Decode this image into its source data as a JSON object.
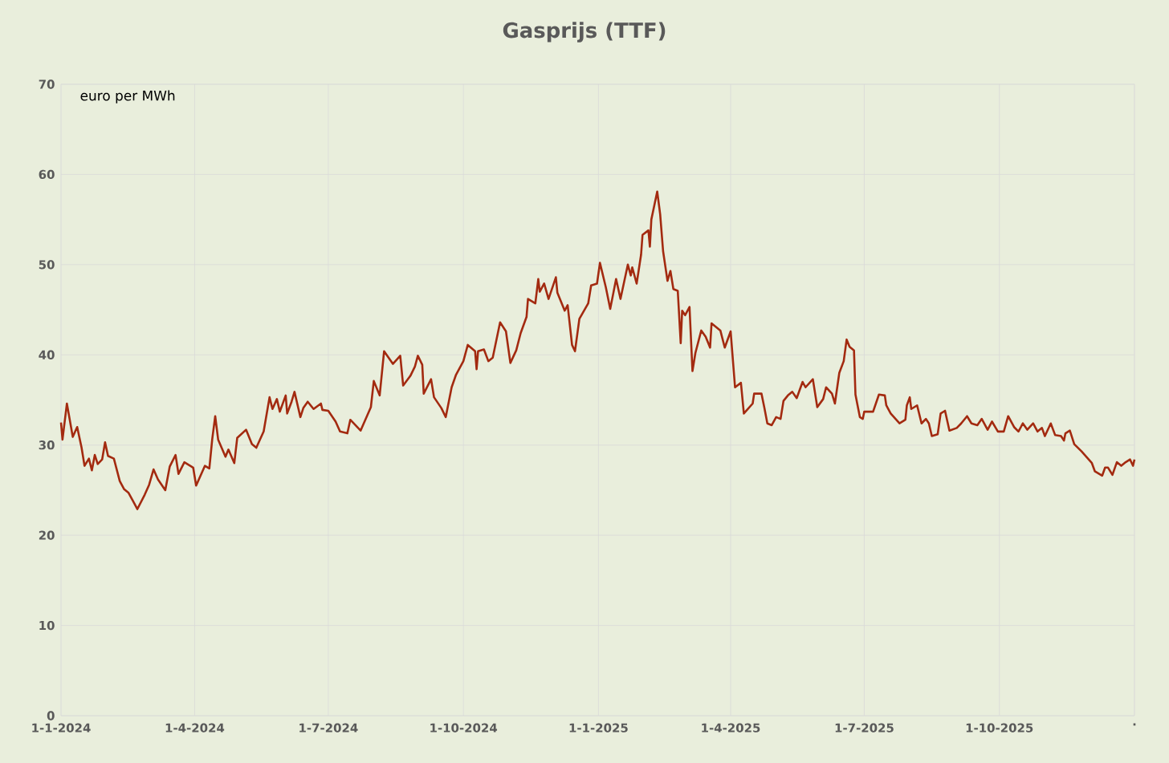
{
  "chart_data": {
    "type": "line",
    "title": "Gasprijs (TTF)",
    "ylabel": "euro per MWh",
    "x": [
      "2024-01-01",
      "2024-01-02",
      "2024-01-05",
      "2024-01-09",
      "2024-01-12",
      "2024-01-15",
      "2024-01-17",
      "2024-01-20",
      "2024-01-22",
      "2024-01-24",
      "2024-01-26",
      "2024-01-29",
      "2024-01-31",
      "2024-02-02",
      "2024-02-06",
      "2024-02-10",
      "2024-02-13",
      "2024-02-16",
      "2024-02-19",
      "2024-02-22",
      "2024-02-27",
      "2024-03-01",
      "2024-03-04",
      "2024-03-07",
      "2024-03-12",
      "2024-03-15",
      "2024-03-19",
      "2024-03-21",
      "2024-03-25",
      "2024-03-31",
      "2024-04-02",
      "2024-04-08",
      "2024-04-11",
      "2024-04-13",
      "2024-04-15",
      "2024-04-17",
      "2024-04-22",
      "2024-04-24",
      "2024-04-28",
      "2024-04-30",
      "2024-05-06",
      "2024-05-10",
      "2024-05-13",
      "2024-05-18",
      "2024-05-22",
      "2024-05-24",
      "2024-05-27",
      "2024-05-29",
      "2024-06-02",
      "2024-06-03",
      "2024-06-06",
      "2024-06-08",
      "2024-06-12",
      "2024-06-14",
      "2024-06-17",
      "2024-06-21",
      "2024-06-26",
      "2024-06-27",
      "2024-07-01",
      "2024-07-06",
      "2024-07-09",
      "2024-07-14",
      "2024-07-16",
      "2024-07-23",
      "2024-07-30",
      "2024-08-01",
      "2024-08-05",
      "2024-08-08",
      "2024-08-14",
      "2024-08-19",
      "2024-08-21",
      "2024-08-26",
      "2024-08-29",
      "2024-08-31",
      "2024-09-03",
      "2024-09-04",
      "2024-09-09",
      "2024-09-11",
      "2024-09-16",
      "2024-09-19",
      "2024-09-23",
      "2024-09-26",
      "2024-10-01",
      "2024-10-04",
      "2024-10-09",
      "2024-10-10",
      "2024-10-11",
      "2024-10-15",
      "2024-10-18",
      "2024-10-21",
      "2024-10-26",
      "2024-10-30",
      "2024-11-02",
      "2024-11-06",
      "2024-11-09",
      "2024-11-13",
      "2024-11-14",
      "2024-11-19",
      "2024-11-21",
      "2024-11-22",
      "2024-11-25",
      "2024-11-28",
      "2024-12-03",
      "2024-12-04",
      "2024-12-09",
      "2024-12-11",
      "2024-12-14",
      "2024-12-16",
      "2024-12-19",
      "2024-12-25",
      "2024-12-27",
      "2024-12-31",
      "2025-01-02",
      "2025-01-06",
      "2025-01-09",
      "2025-01-13",
      "2025-01-16",
      "2025-01-21",
      "2025-01-23",
      "2025-01-24",
      "2025-01-27",
      "2025-01-30",
      "2025-01-31",
      "2025-02-04",
      "2025-02-05",
      "2025-02-06",
      "2025-02-10",
      "2025-02-12",
      "2025-02-14",
      "2025-02-17",
      "2025-02-19",
      "2025-02-21",
      "2025-02-24",
      "2025-02-26",
      "2025-02-27",
      "2025-03-01",
      "2025-03-04",
      "2025-03-06",
      "2025-03-08",
      "2025-03-12",
      "2025-03-15",
      "2025-03-18",
      "2025-03-19",
      "2025-03-25",
      "2025-03-28",
      "2025-04-01",
      "2025-04-04",
      "2025-04-08",
      "2025-04-10",
      "2025-04-16",
      "2025-04-17",
      "2025-04-22",
      "2025-04-24",
      "2025-04-26",
      "2025-04-29",
      "2025-05-02",
      "2025-05-05",
      "2025-05-07",
      "2025-05-10",
      "2025-05-13",
      "2025-05-16",
      "2025-05-20",
      "2025-05-22",
      "2025-05-27",
      "2025-05-30",
      "2025-06-03",
      "2025-06-05",
      "2025-06-09",
      "2025-06-11",
      "2025-06-14",
      "2025-06-17",
      "2025-06-19",
      "2025-06-21",
      "2025-06-24",
      "2025-06-25",
      "2025-06-28",
      "2025-06-30",
      "2025-07-01",
      "2025-07-07",
      "2025-07-11",
      "2025-07-15",
      "2025-07-16",
      "2025-07-19",
      "2025-07-25",
      "2025-07-29",
      "2025-07-30",
      "2025-08-01",
      "2025-08-02",
      "2025-08-06",
      "2025-08-09",
      "2025-08-12",
      "2025-08-14",
      "2025-08-16",
      "2025-08-20",
      "2025-08-22",
      "2025-08-25",
      "2025-08-28",
      "2025-09-02",
      "2025-09-05",
      "2025-09-09",
      "2025-09-12",
      "2025-09-16",
      "2025-09-19",
      "2025-09-23",
      "2025-09-26",
      "2025-09-30",
      "2025-10-04",
      "2025-10-07",
      "2025-10-11",
      "2025-10-14",
      "2025-10-17",
      "2025-10-20",
      "2025-10-24",
      "2025-10-27",
      "2025-10-30",
      "2025-11-01",
      "2025-11-05",
      "2025-11-08",
      "2025-11-12",
      "2025-11-14",
      "2025-11-15",
      "2025-11-18",
      "2025-11-21",
      "2025-11-26",
      "2025-12-03",
      "2025-12-05",
      "2025-12-10",
      "2025-12-12",
      "2025-12-14",
      "2025-12-17",
      "2025-12-20",
      "2025-12-23",
      "2025-12-26",
      "2025-12-29",
      "2025-12-31",
      "2026-01-01"
    ],
    "series": [
      {
        "color": "#a32a10",
        "values": [
          32.5,
          30.6,
          34.6,
          30.9,
          32.0,
          29.7,
          27.7,
          28.5,
          27.2,
          28.9,
          27.9,
          28.4,
          30.3,
          28.8,
          28.5,
          26.0,
          25.1,
          24.7,
          23.8,
          22.9,
          24.5,
          25.6,
          27.3,
          26.2,
          25.0,
          27.6,
          28.9,
          26.8,
          28.1,
          27.5,
          25.5,
          27.7,
          27.4,
          30.7,
          33.2,
          30.6,
          28.7,
          29.5,
          28.0,
          30.8,
          31.7,
          30.1,
          29.7,
          31.5,
          35.3,
          34.0,
          35.1,
          33.7,
          35.5,
          33.5,
          34.8,
          35.9,
          33.1,
          34.1,
          34.8,
          34.0,
          34.6,
          33.9,
          33.8,
          32.6,
          31.5,
          31.3,
          32.8,
          31.6,
          34.2,
          37.1,
          35.5,
          40.4,
          39.0,
          39.9,
          36.6,
          37.7,
          38.7,
          39.9,
          38.9,
          35.7,
          37.3,
          35.3,
          34.1,
          33.1,
          36.4,
          37.8,
          39.3,
          41.1,
          40.4,
          38.4,
          40.4,
          40.6,
          39.3,
          39.7,
          43.6,
          42.6,
          39.1,
          40.5,
          42.4,
          44.2,
          46.2,
          45.7,
          48.4,
          47.0,
          47.9,
          46.2,
          48.6,
          46.9,
          44.9,
          45.5,
          41.1,
          40.4,
          44.0,
          45.7,
          47.7,
          47.9,
          50.2,
          47.5,
          45.1,
          48.4,
          46.2,
          50.0,
          48.8,
          49.7,
          47.9,
          51.1,
          53.3,
          53.8,
          52.0,
          55.0,
          58.1,
          55.6,
          51.5,
          48.2,
          49.3,
          47.3,
          47.1,
          41.3,
          44.9,
          44.4,
          45.3,
          38.2,
          40.2,
          42.7,
          42.0,
          40.8,
          43.5,
          42.7,
          40.8,
          42.6,
          36.4,
          36.9,
          33.5,
          34.6,
          35.7,
          35.7,
          34.1,
          32.4,
          32.2,
          33.1,
          32.9,
          34.9,
          35.5,
          35.9,
          35.2,
          37.0,
          36.4,
          37.3,
          34.2,
          35.1,
          36.4,
          35.7,
          34.6,
          38.0,
          39.3,
          41.7,
          40.9,
          40.5,
          35.6,
          33.1,
          32.9,
          33.7,
          33.7,
          35.6,
          35.5,
          34.4,
          33.5,
          32.4,
          32.8,
          34.4,
          35.3,
          34.0,
          34.4,
          32.4,
          32.9,
          32.4,
          31.0,
          31.2,
          33.5,
          33.8,
          31.6,
          31.9,
          32.4,
          33.2,
          32.4,
          32.2,
          32.9,
          31.7,
          32.6,
          31.5,
          31.5,
          33.2,
          32.0,
          31.5,
          32.4,
          31.7,
          32.4,
          31.5,
          31.9,
          31.0,
          32.4,
          31.1,
          31.0,
          30.5,
          31.3,
          31.6,
          30.1,
          29.3,
          28.0,
          27.1,
          26.6,
          27.5,
          27.5,
          26.7,
          28.1,
          27.7,
          28.1,
          28.4,
          27.7,
          28.4
        ]
      }
    ],
    "xlim": [
      "2024-01-01",
      "2026-01-01"
    ],
    "xticks": [
      {
        "value": "2024-01-01",
        "label": "1-1-2024"
      },
      {
        "value": "2024-04-01",
        "label": "1-4-2024"
      },
      {
        "value": "2024-07-01",
        "label": "1-7-2024"
      },
      {
        "value": "2024-10-01",
        "label": "1-10-2024"
      },
      {
        "value": "2025-01-01",
        "label": "1-1-2025"
      },
      {
        "value": "2025-04-01",
        "label": "1-4-2025"
      },
      {
        "value": "2025-07-01",
        "label": "1-7-2025"
      },
      {
        "value": "2025-10-01",
        "label": "1-10-2025"
      },
      {
        "value": "2026-01-01",
        "label": "."
      }
    ],
    "ylim": [
      0,
      70
    ],
    "yticks": [
      0,
      10,
      20,
      30,
      40,
      50,
      60,
      70
    ],
    "grid": true,
    "marker": "none",
    "line_style": "solid"
  }
}
